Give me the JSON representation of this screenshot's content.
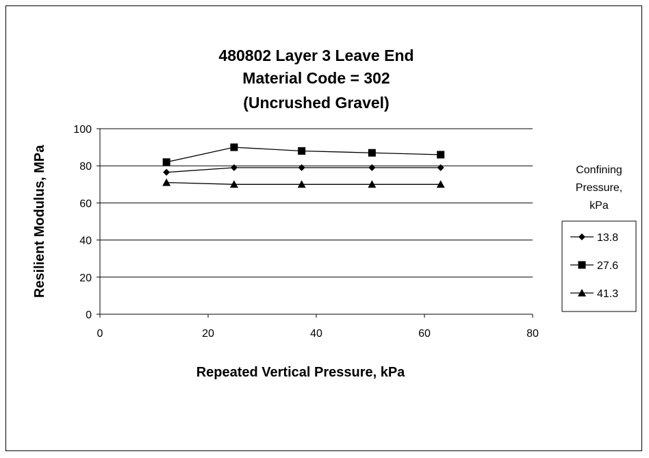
{
  "chart_data": {
    "type": "scatter",
    "title_lines": [
      "480802 Layer 3 Leave End",
      "Material Code = 302",
      "(Uncrushed Gravel)"
    ],
    "xlabel": "Repeated Vertical Pressure, kPa",
    "ylabel": "Resilient Modulus, MPa",
    "xlim": [
      0,
      80
    ],
    "ylim": [
      0,
      100
    ],
    "xticks": [
      0,
      20,
      40,
      60,
      80
    ],
    "yticks": [
      0,
      20,
      40,
      60,
      80,
      100
    ],
    "horizontal_gridlines": true,
    "legend_position": "right",
    "legend_title_lines": [
      "Confining",
      "Pressure,",
      "kPa"
    ],
    "series": [
      {
        "name": "13.8",
        "marker": "diamond",
        "x": [
          12.3,
          24.8,
          37.3,
          50.3,
          63
        ],
        "y": [
          76.5,
          79,
          79,
          79,
          79
        ]
      },
      {
        "name": "27.6",
        "marker": "square",
        "x": [
          12.3,
          24.8,
          37.3,
          50.3,
          63
        ],
        "y": [
          82,
          90,
          88,
          87,
          86
        ]
      },
      {
        "name": "41.3",
        "marker": "triangle",
        "x": [
          12.3,
          24.8,
          37.3,
          50.3,
          63
        ],
        "y": [
          71,
          70,
          70,
          70,
          70
        ]
      }
    ],
    "colors": {
      "lines": "#000000",
      "gridlines": "#000000",
      "background": "#ffffff"
    }
  }
}
